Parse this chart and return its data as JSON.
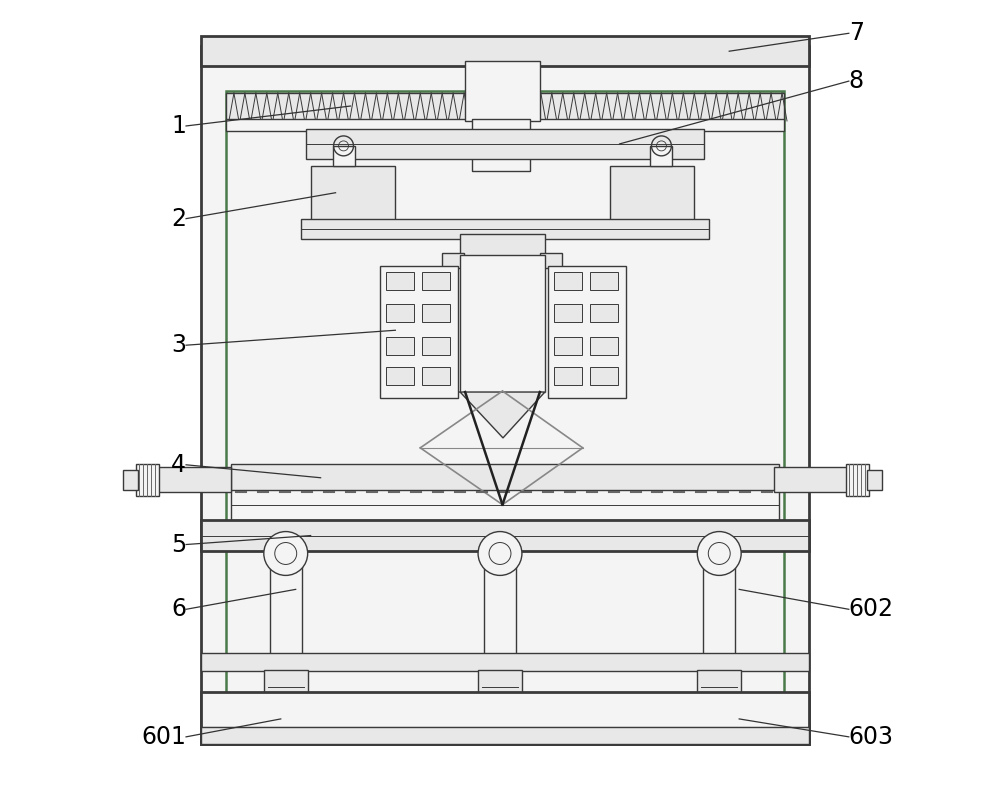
{
  "bg_color": "#ffffff",
  "line_color": "#3a3a3a",
  "line_width": 1.0,
  "thick_line": 2.0,
  "green_color": "#4a7a4a",
  "gray_fill": "#e8e8e8",
  "light_fill": "#f4f4f4",
  "label_fontsize": 17,
  "annotation_color": "#333333",
  "ann_lw": 0.9
}
